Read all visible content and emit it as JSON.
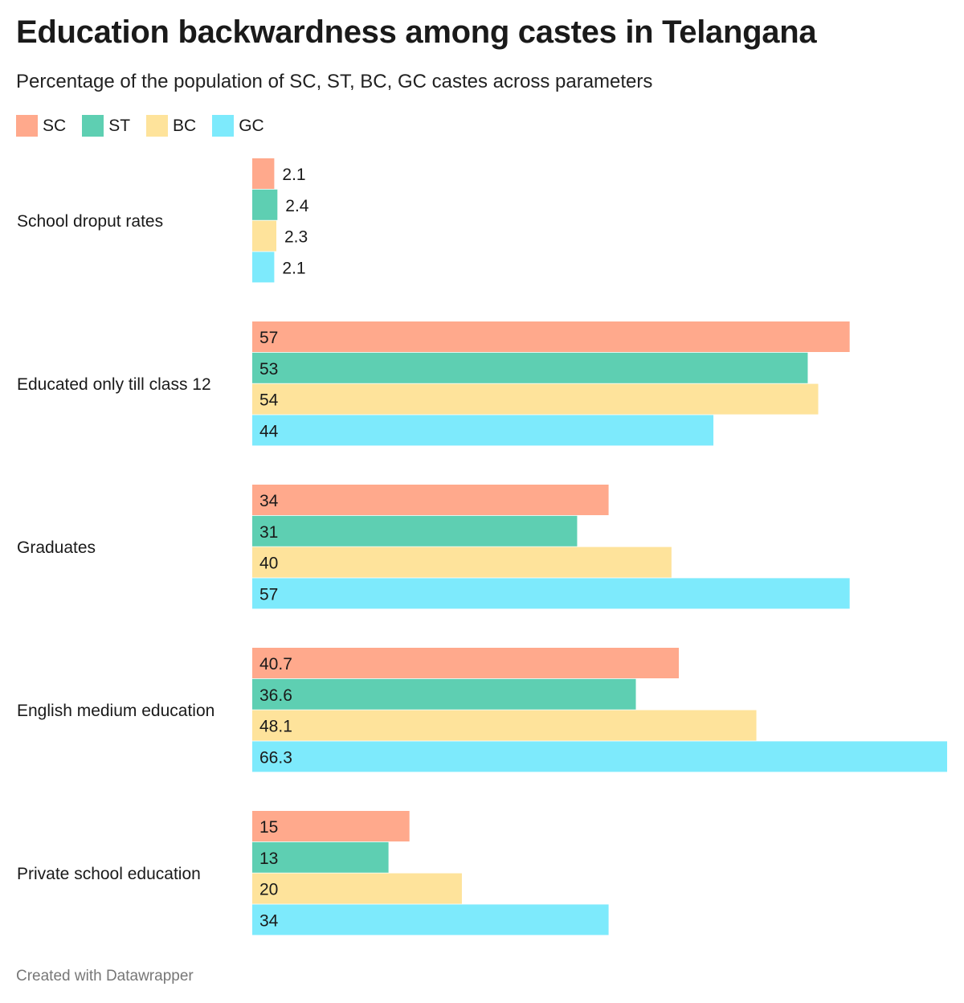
{
  "title": "Education backwardness among castes in Telangana",
  "subtitle": "Percentage of the population of SC, ST, BC, GC castes across parameters",
  "footer": "Created with Datawrapper",
  "chart_data": {
    "type": "bar",
    "orientation": "horizontal",
    "title": "Education backwardness among castes in Telangana",
    "subtitle": "Percentage of the population of SC, ST, BC, GC castes across parameters",
    "categories": [
      "School droput rates",
      "Educated only till class 12",
      "Graduates",
      "English medium education",
      "Private school education"
    ],
    "series": [
      {
        "name": "SC",
        "color": "#ffa98c",
        "values": [
          2.1,
          57,
          34,
          40.7,
          15
        ],
        "labels": [
          "2.1",
          "57",
          "34",
          "40.7",
          "15"
        ]
      },
      {
        "name": "ST",
        "color": "#5ecfb2",
        "values": [
          2.4,
          53,
          31,
          36.6,
          13
        ],
        "labels": [
          "2.4",
          "53",
          "31",
          "36.6",
          "13"
        ]
      },
      {
        "name": "BC",
        "color": "#fee39b",
        "values": [
          2.3,
          54,
          40,
          48.1,
          20
        ],
        "labels": [
          "2.3",
          "54",
          "40",
          "48.1",
          "20"
        ]
      },
      {
        "name": "GC",
        "color": "#7deafc",
        "values": [
          2.1,
          44,
          57,
          66.3,
          34
        ],
        "labels": [
          "2.1",
          "44",
          "57",
          "66.3",
          "34"
        ]
      }
    ],
    "xlim": [
      0,
      66.3
    ],
    "legend_position": "top-left",
    "grid": false
  }
}
